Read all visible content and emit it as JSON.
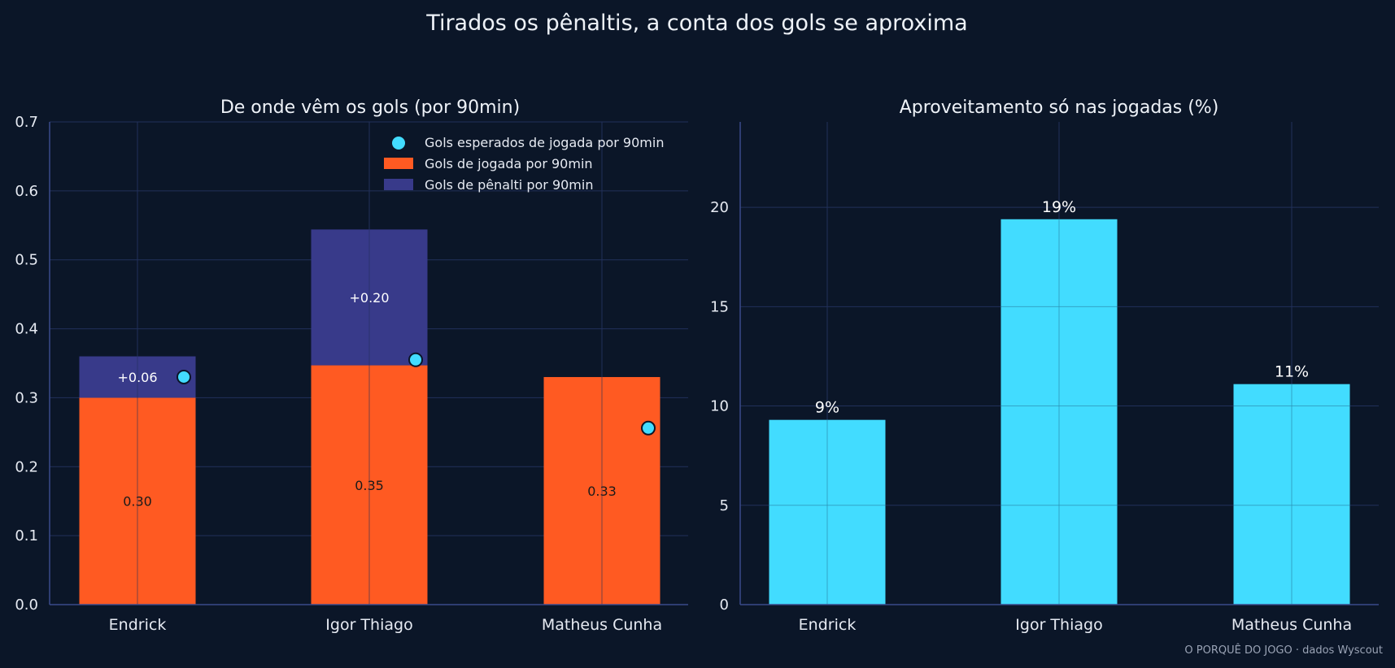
{
  "figure": {
    "title": "Tirados os pênaltis, a conta dos gols se aproxima",
    "source": "O PORQUÊ DO JOGO · dados Wyscout"
  },
  "colors": {
    "background": "#0b1628",
    "open_play": "#ff5a22",
    "penalty": "#383a8a",
    "xg_marker": "#42dcff",
    "conversion_bar": "#42dcff"
  },
  "chart_data": [
    {
      "type": "bar",
      "stacked": true,
      "title": "De onde vêm os gols (por 90min)",
      "categories": [
        "Endrick",
        "Igor Thiago",
        "Matheus Cunha"
      ],
      "ylim": [
        0,
        0.7
      ],
      "yticks": [
        "0.0",
        "0.1",
        "0.2",
        "0.3",
        "0.4",
        "0.5",
        "0.6",
        "0.7"
      ],
      "ytick_values": [
        0,
        0.1,
        0.2,
        0.3,
        0.4,
        0.5,
        0.6,
        0.7
      ],
      "grid": true,
      "legend": "top-right",
      "series": [
        {
          "name": "Gols de jogada por 90min",
          "values": [
            0.3,
            0.347,
            0.33
          ],
          "labels": [
            "0.30",
            "0.35",
            "0.33"
          ]
        },
        {
          "name": "Gols de pênalti por 90min",
          "values": [
            0.06,
            0.197,
            0
          ],
          "labels": [
            "+0.06",
            "+0.20",
            ""
          ]
        }
      ],
      "markers": {
        "name": "Gols esperados de jogada por 90min",
        "values": [
          0.33,
          0.355,
          0.256
        ]
      }
    },
    {
      "type": "bar",
      "title": "Aproveitamento só nas jogadas (%)",
      "categories": [
        "Endrick",
        "Igor Thiago",
        "Matheus Cunha"
      ],
      "values": [
        9.3,
        19.4,
        11.1
      ],
      "labels": [
        "9%",
        "19%",
        "11%"
      ],
      "ylim": [
        0,
        24.3
      ],
      "yticks": [
        "0",
        "5",
        "10",
        "15",
        "20"
      ],
      "ytick_values": [
        0,
        5,
        10,
        15,
        20
      ],
      "grid": true
    }
  ]
}
